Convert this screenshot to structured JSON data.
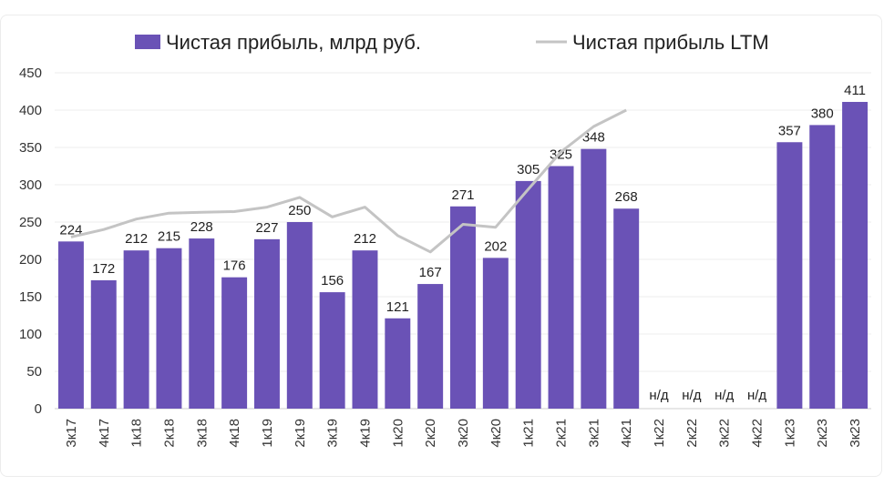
{
  "chart_data": {
    "type": "bar",
    "categories": [
      "3к17",
      "4к17",
      "1к18",
      "2к18",
      "3к18",
      "4к18",
      "1к19",
      "2к19",
      "3к19",
      "4к19",
      "1к20",
      "2к20",
      "3к20",
      "4к20",
      "1к21",
      "2к21",
      "3к21",
      "4к21",
      "1к22",
      "2к22",
      "3к22",
      "4к22",
      "1к23",
      "2к23",
      "3к23"
    ],
    "series": [
      {
        "name": "Чистая прибыль, млрд руб.",
        "type": "bar",
        "color": "#6a52b6",
        "values": [
          224,
          172,
          212,
          215,
          228,
          176,
          227,
          250,
          156,
          212,
          121,
          167,
          271,
          202,
          305,
          325,
          348,
          268,
          null,
          null,
          null,
          null,
          357,
          380,
          411
        ],
        "labels": [
          "224",
          "172",
          "212",
          "215",
          "228",
          "176",
          "227",
          "250",
          "156",
          "212",
          "121",
          "167",
          "271",
          "202",
          "305",
          "325",
          "348",
          "268",
          "н/д",
          "н/д",
          "н/д",
          "н/д",
          "357",
          "380",
          "411"
        ]
      },
      {
        "name": "Чистая прибыль LTM",
        "type": "line",
        "color": "#c4c4c4",
        "values": [
          230,
          240,
          254,
          262,
          263,
          264,
          270,
          283,
          257,
          270,
          232,
          210,
          247,
          243,
          294,
          344,
          378,
          400,
          null,
          null,
          null,
          null,
          null,
          null,
          null
        ]
      }
    ],
    "ylim": [
      0,
      450
    ],
    "yticks": [
      "0",
      "50",
      "100",
      "150",
      "200",
      "250",
      "300",
      "350",
      "400",
      "450"
    ],
    "grid": true,
    "legend": "top"
  }
}
